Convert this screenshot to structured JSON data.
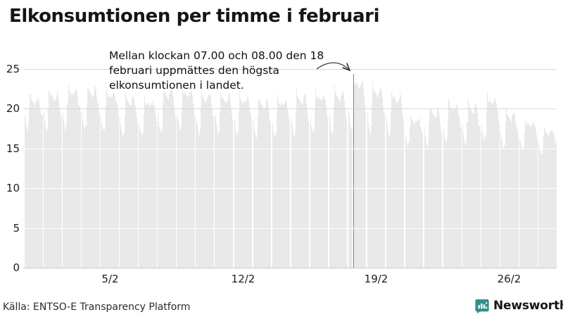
{
  "title": "Elkonsumtionen per timme i februari",
  "annotation": {
    "text": "Mellan klockan 07.00 och 08.00 den 18 februari uppmättes den högsta elkonsumtionen i landet."
  },
  "footer": {
    "source": "Källa: ENTSO-E Transparency Platform",
    "brand": "Newsworthy"
  },
  "colors": {
    "bar": "#e9e9e9",
    "highlight": "#3ca39d",
    "grid_major": "#d8d8d8",
    "grid_on_bars": "rgba(255,255,255,0.92)",
    "axis_line": "#c9c9c9",
    "brand_teal": "#2f9188",
    "arrow": "#3a3a3a"
  },
  "chart_data": {
    "type": "bar",
    "x_unit": "hour",
    "days_in_month": 28,
    "hours_per_day": 24,
    "ylim": [
      0,
      25
    ],
    "yticks": [
      0,
      5,
      10,
      15,
      20,
      25
    ],
    "xticks": [
      {
        "label": "5/2",
        "day": 5
      },
      {
        "label": "12/2",
        "day": 12
      },
      {
        "label": "19/2",
        "day": 19
      },
      {
        "label": "26/2",
        "day": 26
      }
    ],
    "hour_shape": [
      0.44,
      0.3,
      0.2,
      0.12,
      0.1,
      0.18,
      0.6,
      1.0,
      0.88,
      0.85,
      0.83,
      0.81,
      0.79,
      0.77,
      0.76,
      0.78,
      0.83,
      0.89,
      0.91,
      0.85,
      0.74,
      0.62,
      0.5,
      0.4
    ],
    "days": [
      {
        "day": 1,
        "min": 17.0,
        "peak": 21.8
      },
      {
        "day": 2,
        "min": 16.6,
        "peak": 22.5
      },
      {
        "day": 3,
        "min": 16.8,
        "peak": 23.2
      },
      {
        "day": 4,
        "min": 16.8,
        "peak": 23.1
      },
      {
        "day": 5,
        "min": 16.5,
        "peak": 22.8
      },
      {
        "day": 6,
        "min": 16.2,
        "peak": 21.9
      },
      {
        "day": 7,
        "min": 16.0,
        "peak": 21.6
      },
      {
        "day": 8,
        "min": 16.5,
        "peak": 22.9
      },
      {
        "day": 9,
        "min": 16.5,
        "peak": 23.0
      },
      {
        "day": 10,
        "min": 16.3,
        "peak": 22.4
      },
      {
        "day": 11,
        "min": 16.2,
        "peak": 22.3
      },
      {
        "day": 12,
        "min": 16.0,
        "peak": 22.1
      },
      {
        "day": 13,
        "min": 15.8,
        "peak": 21.6
      },
      {
        "day": 14,
        "min": 15.8,
        "peak": 21.8
      },
      {
        "day": 15,
        "min": 16.0,
        "peak": 22.3
      },
      {
        "day": 16,
        "min": 16.2,
        "peak": 22.5
      },
      {
        "day": 17,
        "min": 16.3,
        "peak": 22.7
      },
      {
        "day": 18,
        "min": 16.5,
        "peak": 24.4
      },
      {
        "day": 19,
        "min": 16.3,
        "peak": 23.3
      },
      {
        "day": 20,
        "min": 15.8,
        "peak": 22.3
      },
      {
        "day": 21,
        "min": 15.0,
        "peak": 19.2
      },
      {
        "day": 22,
        "min": 14.8,
        "peak": 20.3
      },
      {
        "day": 23,
        "min": 15.0,
        "peak": 21.2
      },
      {
        "day": 24,
        "min": 15.0,
        "peak": 21.0
      },
      {
        "day": 25,
        "min": 15.2,
        "peak": 22.2
      },
      {
        "day": 26,
        "min": 14.8,
        "peak": 19.9
      },
      {
        "day": 27,
        "min": 14.5,
        "peak": 18.8
      },
      {
        "day": 28,
        "min": 14.2,
        "peak": 17.6
      }
    ],
    "highlight": {
      "day": 18,
      "hour": 7,
      "value": 24.4,
      "label": "07.00–08.00 den 18 februari"
    }
  }
}
